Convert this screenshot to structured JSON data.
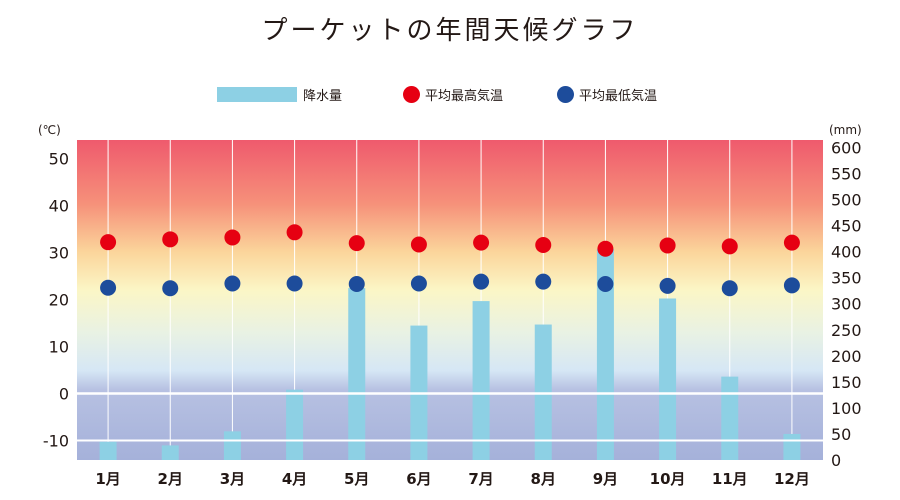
{
  "chart_data": {
    "type": "bar+scatter",
    "title": "プーケットの年間天候グラフ",
    "categories": [
      "1月",
      "2月",
      "3月",
      "4月",
      "5月",
      "6月",
      "7月",
      "8月",
      "9月",
      "10月",
      "11月",
      "12月"
    ],
    "series": [
      {
        "name": "降水量",
        "type": "bar",
        "axis": "right",
        "color": "#8dd0e4",
        "values": [
          35,
          28,
          55,
          135,
          330,
          258,
          305,
          260,
          405,
          310,
          160,
          50
        ]
      },
      {
        "name": "平均最高気温",
        "type": "scatter",
        "axis": "left",
        "color": "#e60012",
        "values": [
          32.2,
          32.8,
          33.2,
          34.3,
          32.0,
          31.7,
          32.1,
          31.6,
          30.8,
          31.5,
          31.3,
          32.1
        ]
      },
      {
        "name": "平均最低気温",
        "type": "scatter",
        "axis": "left",
        "color": "#1d4c9b",
        "values": [
          22.5,
          22.4,
          23.4,
          23.4,
          23.3,
          23.4,
          23.8,
          23.8,
          23.3,
          22.9,
          22.4,
          23.0
        ]
      }
    ],
    "y_left": {
      "unit": "(℃)",
      "ylim": [
        -14,
        52.5
      ],
      "ticks": [
        50,
        40,
        30,
        20,
        10,
        0,
        -10
      ]
    },
    "y_right": {
      "unit": "(mm)",
      "ylim": [
        0,
        600
      ],
      "ticks": [
        600,
        550,
        500,
        450,
        400,
        350,
        300,
        250,
        200,
        150,
        100,
        50,
        0
      ]
    },
    "legend_position": "top-center",
    "colors": {
      "hot": "#ef5a6d",
      "warm": "#fbd59b",
      "mild": "#fbf6c6",
      "cool": "#d6e7f5",
      "cold": "#a5b1da",
      "grid": "#ffffff"
    }
  }
}
